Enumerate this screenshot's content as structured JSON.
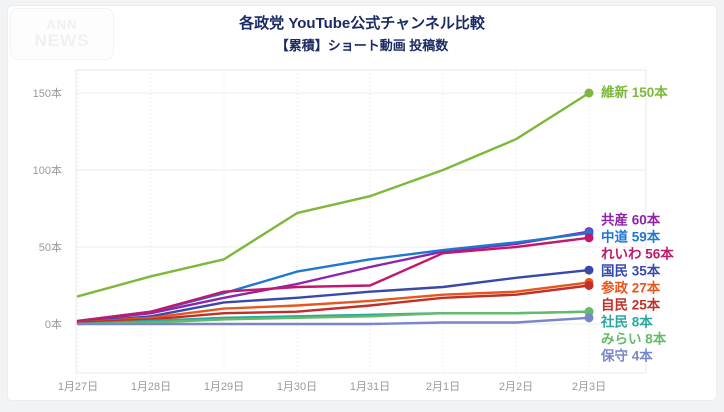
{
  "logo": {
    "line1": "ANN",
    "line2": "NEWS"
  },
  "chart_data": {
    "type": "line",
    "title": "各政党 YouTube公式チャンネル比較",
    "subtitle": "【累積】ショート動画 投稿数",
    "unit": "本",
    "x": [
      "1月27日",
      "1月28日",
      "1月29日",
      "1月30日",
      "1月31日",
      "2月1日",
      "2月2日",
      "2月3日"
    ],
    "y_ticks": [
      0,
      50,
      100,
      150
    ],
    "y_tick_labels": [
      "0本",
      "50本",
      "100本",
      "150本"
    ],
    "ylim": [
      -30,
      160
    ],
    "grid": {
      "horizontal": "solid",
      "vertical": "dotted"
    },
    "legend_position": "end-of-line-right",
    "series": [
      {
        "key": "ishin",
        "name": "維新",
        "color": "#7cb93a",
        "values": [
          18,
          31,
          42,
          72,
          83,
          100,
          120,
          150
        ],
        "final": 150,
        "final_label": "維新 150本"
      },
      {
        "key": "kyosan",
        "name": "共産",
        "color": "#8e24aa",
        "values": [
          2,
          7,
          17,
          26,
          37,
          47,
          52,
          60
        ],
        "final": 60,
        "final_label": "共産 60本"
      },
      {
        "key": "chudo",
        "name": "中道",
        "color": "#1e78d2",
        "values": [
          2,
          8,
          20,
          34,
          42,
          48,
          53,
          59
        ],
        "final": 59,
        "final_label": "中道 59本"
      },
      {
        "key": "reiwa",
        "name": "れいわ",
        "color": "#c2186b",
        "values": [
          2,
          8,
          21,
          24,
          25,
          46,
          50,
          56
        ],
        "final": 56,
        "final_label": "れいわ 56本"
      },
      {
        "key": "kokumin",
        "name": "国民",
        "color": "#3949ab",
        "values": [
          1,
          5,
          14,
          17,
          21,
          24,
          30,
          35
        ],
        "final": 35,
        "final_label": "国民 35本"
      },
      {
        "key": "sansei",
        "name": "参政",
        "color": "#e8561e",
        "values": [
          1,
          4,
          10,
          12,
          15,
          19,
          21,
          27
        ],
        "final": 27,
        "final_label": "参政 27本"
      },
      {
        "key": "jimin",
        "name": "自民",
        "color": "#c03028",
        "values": [
          1,
          3,
          7,
          8,
          12,
          17,
          19,
          25
        ],
        "final": 25,
        "final_label": "自民 25本"
      },
      {
        "key": "shamin",
        "name": "社民",
        "color": "#2aa79e",
        "values": [
          0,
          2,
          4,
          5,
          6,
          7,
          7,
          8
        ],
        "final": 8,
        "final_label": "社民 8本"
      },
      {
        "key": "mirai",
        "name": "みらい",
        "color": "#66bb6a",
        "values": [
          0,
          1,
          3,
          4,
          5,
          7,
          7,
          8
        ],
        "final": 8,
        "final_label": "みらい 8本"
      },
      {
        "key": "hoshu",
        "name": "保守",
        "color": "#7986cb",
        "values": [
          0,
          0,
          0,
          0,
          0,
          1,
          1,
          4
        ],
        "final": 4,
        "final_label": "保守 4本"
      }
    ]
  }
}
